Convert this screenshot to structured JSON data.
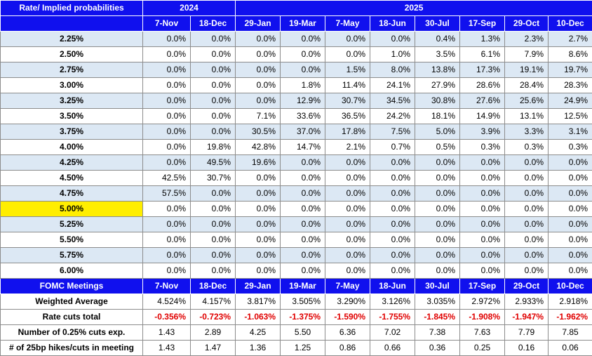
{
  "header": {
    "corner": "Rate/ Implied probabilities",
    "years": [
      {
        "label": "2024",
        "span": 2
      },
      {
        "label": "2025",
        "span": 8
      }
    ]
  },
  "dates": [
    "7-Nov",
    "18-Dec",
    "29-Jan",
    "19-Mar",
    "7-May",
    "18-Jun",
    "30-Jul",
    "17-Sep",
    "29-Oct",
    "10-Dec"
  ],
  "highlight_color": "#ffee00",
  "accent_color": "#1010ee",
  "negative_color": "#e00000",
  "rows": [
    {
      "rate": "2.25%",
      "values": [
        "0.0%",
        "0.0%",
        "0.0%",
        "0.0%",
        "0.0%",
        "0.0%",
        "0.4%",
        "1.3%",
        "2.3%",
        "2.7%"
      ]
    },
    {
      "rate": "2.50%",
      "values": [
        "0.0%",
        "0.0%",
        "0.0%",
        "0.0%",
        "0.0%",
        "1.0%",
        "3.5%",
        "6.1%",
        "7.9%",
        "8.6%"
      ]
    },
    {
      "rate": "2.75%",
      "values": [
        "0.0%",
        "0.0%",
        "0.0%",
        "0.0%",
        "1.5%",
        "8.0%",
        "13.8%",
        "17.3%",
        "19.1%",
        "19.7%"
      ]
    },
    {
      "rate": "3.00%",
      "values": [
        "0.0%",
        "0.0%",
        "0.0%",
        "1.8%",
        "11.4%",
        "24.1%",
        "27.9%",
        "28.6%",
        "28.4%",
        "28.3%"
      ]
    },
    {
      "rate": "3.25%",
      "values": [
        "0.0%",
        "0.0%",
        "0.0%",
        "12.9%",
        "30.7%",
        "34.5%",
        "30.8%",
        "27.6%",
        "25.6%",
        "24.9%"
      ]
    },
    {
      "rate": "3.50%",
      "values": [
        "0.0%",
        "0.0%",
        "7.1%",
        "33.6%",
        "36.5%",
        "24.2%",
        "18.1%",
        "14.9%",
        "13.1%",
        "12.5%"
      ]
    },
    {
      "rate": "3.75%",
      "values": [
        "0.0%",
        "0.0%",
        "30.5%",
        "37.0%",
        "17.8%",
        "7.5%",
        "5.0%",
        "3.9%",
        "3.3%",
        "3.1%"
      ]
    },
    {
      "rate": "4.00%",
      "values": [
        "0.0%",
        "19.8%",
        "42.8%",
        "14.7%",
        "2.1%",
        "0.7%",
        "0.5%",
        "0.3%",
        "0.3%",
        "0.3%"
      ]
    },
    {
      "rate": "4.25%",
      "values": [
        "0.0%",
        "49.5%",
        "19.6%",
        "0.0%",
        "0.0%",
        "0.0%",
        "0.0%",
        "0.0%",
        "0.0%",
        "0.0%"
      ]
    },
    {
      "rate": "4.50%",
      "values": [
        "42.5%",
        "30.7%",
        "0.0%",
        "0.0%",
        "0.0%",
        "0.0%",
        "0.0%",
        "0.0%",
        "0.0%",
        "0.0%"
      ]
    },
    {
      "rate": "4.75%",
      "values": [
        "57.5%",
        "0.0%",
        "0.0%",
        "0.0%",
        "0.0%",
        "0.0%",
        "0.0%",
        "0.0%",
        "0.0%",
        "0.0%"
      ]
    },
    {
      "rate": "5.00%",
      "values": [
        "0.0%",
        "0.0%",
        "0.0%",
        "0.0%",
        "0.0%",
        "0.0%",
        "0.0%",
        "0.0%",
        "0.0%",
        "0.0%"
      ],
      "highlight": true
    },
    {
      "rate": "5.25%",
      "values": [
        "0.0%",
        "0.0%",
        "0.0%",
        "0.0%",
        "0.0%",
        "0.0%",
        "0.0%",
        "0.0%",
        "0.0%",
        "0.0%"
      ]
    },
    {
      "rate": "5.50%",
      "values": [
        "0.0%",
        "0.0%",
        "0.0%",
        "0.0%",
        "0.0%",
        "0.0%",
        "0.0%",
        "0.0%",
        "0.0%",
        "0.0%"
      ]
    },
    {
      "rate": "5.75%",
      "values": [
        "0.0%",
        "0.0%",
        "0.0%",
        "0.0%",
        "0.0%",
        "0.0%",
        "0.0%",
        "0.0%",
        "0.0%",
        "0.0%"
      ]
    },
    {
      "rate": "6.00%",
      "values": [
        "0.0%",
        "0.0%",
        "0.0%",
        "0.0%",
        "0.0%",
        "0.0%",
        "0.0%",
        "0.0%",
        "0.0%",
        "0.0%"
      ]
    }
  ],
  "fomc_label": "FOMC Meetings",
  "summary": [
    {
      "label": "Weighted Average",
      "values": [
        "4.524%",
        "4.157%",
        "3.817%",
        "3.505%",
        "3.290%",
        "3.126%",
        "3.035%",
        "2.972%",
        "2.933%",
        "2.918%"
      ],
      "style": "plain"
    },
    {
      "label": "Rate cuts total",
      "values": [
        "-0.356%",
        "-0.723%",
        "-1.063%",
        "-1.375%",
        "-1.590%",
        "-1.755%",
        "-1.845%",
        "-1.908%",
        "-1.947%",
        "-1.962%"
      ],
      "style": "red"
    },
    {
      "label": "Number of 0.25% cuts exp.",
      "values": [
        "1.43",
        "2.89",
        "4.25",
        "5.50",
        "6.36",
        "7.02",
        "7.38",
        "7.63",
        "7.79",
        "7.85"
      ],
      "style": "plain"
    },
    {
      "label": "# of 25bp hikes/cuts in meeting",
      "values": [
        "1.43",
        "1.47",
        "1.36",
        "1.25",
        "0.86",
        "0.66",
        "0.36",
        "0.25",
        "0.16",
        "0.06"
      ],
      "style": "plain"
    }
  ]
}
